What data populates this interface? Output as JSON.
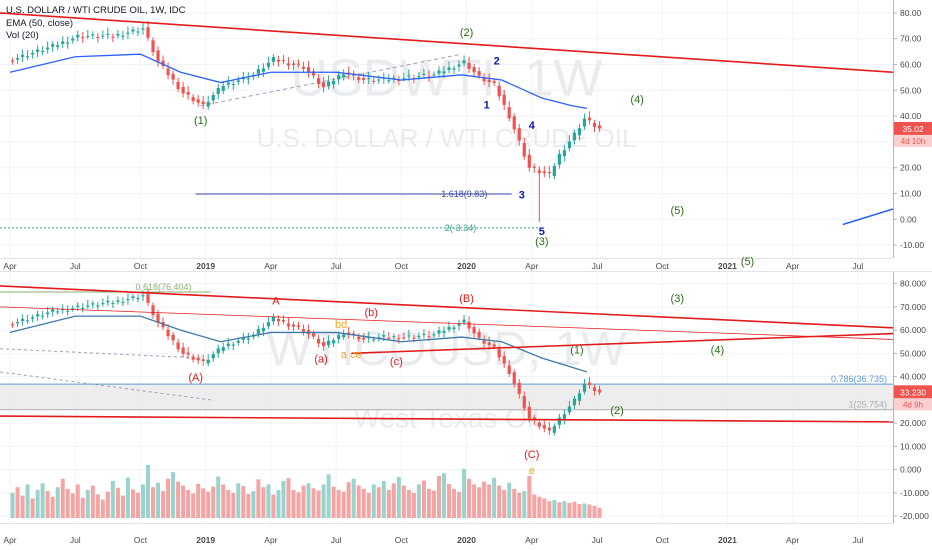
{
  "colors": {
    "up": "#26a69a",
    "down": "#ef5350",
    "ema": "#2962ff",
    "ema_lower": "#3d78a8",
    "trend": "#e31b1b",
    "wave_red": "#e31b1b",
    "wave_green": "#2b6e17",
    "wave_blue": "#0b19b8",
    "wave_orange": "#f5a623",
    "fib_blue": "#3b4aa5",
    "fib_teal": "#2fa38b",
    "grid": "#f0f3fa",
    "axis_text": "#4a4a4a",
    "band": "#d9d9d9",
    "watermark": "#e9ebef"
  },
  "header": {
    "title": "U.S. DOLLAR / WTI CRUDE OIL, 1W, IDC",
    "indicator_ema": "EMA (50, close)",
    "indicator_vol": "Vol (20)"
  },
  "chart_data": [
    {
      "type": "candlestick",
      "symbol": "USDWTI",
      "watermark": "USDWTI, 1W",
      "watermark_sub": "U.S. DOLLAR / WTI CRUDE OIL",
      "ylim": [
        -15,
        85
      ],
      "yticks": [
        "80.00",
        "70.00",
        "60.00",
        "50.00",
        "40.00",
        "30.00",
        "20.00",
        "10.00",
        "0.00",
        "-10.00"
      ],
      "yticks_values": [
        80,
        70,
        60,
        50,
        40,
        30,
        20,
        10,
        0,
        -10
      ],
      "x_axis": [
        "Apr",
        "Jul",
        "Oct",
        "2019",
        "Apr",
        "Jul",
        "Oct",
        "2020",
        "Apr",
        "Jul",
        "Oct",
        "2021",
        "Apr",
        "Jul"
      ],
      "x_axis_values": [
        0,
        13,
        26,
        39,
        52,
        65,
        78,
        91,
        104,
        117,
        130,
        143,
        156,
        169
      ],
      "x_range": [
        -2,
        176
      ],
      "anchors": [
        [
          0,
          62
        ],
        [
          8,
          67
        ],
        [
          13,
          71
        ],
        [
          20,
          71
        ],
        [
          26,
          74
        ],
        [
          29,
          61
        ],
        [
          34,
          49
        ],
        [
          38,
          44
        ],
        [
          42,
          52
        ],
        [
          48,
          56
        ],
        [
          52,
          62
        ],
        [
          58,
          59
        ],
        [
          62,
          51
        ],
        [
          66,
          57
        ],
        [
          70,
          54
        ],
        [
          74,
          54
        ],
        [
          78,
          55
        ],
        [
          84,
          56
        ],
        [
          90,
          61
        ],
        [
          93,
          55
        ],
        [
          96,
          52
        ],
        [
          99,
          40
        ],
        [
          103,
          20
        ],
        [
          107,
          17
        ],
        [
          109,
          25
        ],
        [
          112,
          33
        ],
        [
          114,
          39
        ],
        [
          117,
          35
        ]
      ],
      "ema": [
        [
          0,
          57
        ],
        [
          13,
          63
        ],
        [
          26,
          64
        ],
        [
          34,
          57
        ],
        [
          42,
          53
        ],
        [
          52,
          57
        ],
        [
          65,
          57
        ],
        [
          78,
          54
        ],
        [
          90,
          56
        ],
        [
          98,
          54
        ],
        [
          106,
          47
        ],
        [
          112,
          44
        ],
        [
          115,
          43
        ]
      ],
      "last_price": "35.02",
      "last_countdown": "4d 10h",
      "trendlines": [
        {
          "points": [
            [
              -2,
              80
            ],
            [
              176,
              57
            ]
          ]
        },
        {
          "points": [
            [
              166,
              -2
            ],
            [
              176,
              4
            ]
          ]
        }
      ],
      "fib_lines": [
        {
          "label": "1.618(9.83)",
          "value": 9.83,
          "x_from": 37,
          "x_to": 100
        },
        {
          "label": "2(-3.34)",
          "value": -3.34,
          "x_from": -2,
          "x_to": 106
        }
      ],
      "dashed_channel": [
        [
          38,
          44
        ],
        [
          90,
          64
        ]
      ],
      "wave_labels": [
        {
          "text": "(1)",
          "x": 38,
          "y": 37,
          "color": "green"
        },
        {
          "text": "(2)",
          "x": 91,
          "y": 71,
          "color": "green"
        },
        {
          "text": "2",
          "x": 97,
          "y": 60,
          "color": "blue"
        },
        {
          "text": "1",
          "x": 95,
          "y": 43,
          "color": "blue"
        },
        {
          "text": "4",
          "x": 104,
          "y": 35,
          "color": "blue"
        },
        {
          "text": "3",
          "x": 102,
          "y": 8,
          "color": "blue"
        },
        {
          "text": "5",
          "x": 106,
          "y": -6,
          "color": "blue"
        },
        {
          "text": "(3)",
          "x": 106,
          "y": -10,
          "color": "green"
        },
        {
          "text": "(4)",
          "x": 125,
          "y": 45,
          "color": "green"
        },
        {
          "text": "(5)",
          "x": 133,
          "y": 2,
          "color": "green"
        }
      ]
    },
    {
      "type": "candlestick",
      "symbol": "WTICOUSD",
      "watermark": "WTICOUSD, 1W",
      "watermark_sub": "West Texas Oil",
      "ylim": [
        -23,
        85
      ],
      "yticks": [
        "80.000",
        "70.000",
        "60.000",
        "50.000",
        "40.000",
        "30.000",
        "20.000",
        "10.000",
        "0.000",
        "-10.000",
        "-20.000"
      ],
      "yticks_values": [
        80,
        70,
        60,
        50,
        40,
        30,
        20,
        10,
        0,
        -10,
        -20
      ],
      "x_axis": [
        "Apr",
        "Jul",
        "Oct",
        "2019",
        "Apr",
        "Jul",
        "Oct",
        "2020",
        "Apr",
        "Jul",
        "Oct",
        "2021",
        "Apr",
        "Jul"
      ],
      "x_axis_values": [
        0,
        13,
        26,
        39,
        52,
        65,
        78,
        91,
        104,
        117,
        130,
        143,
        156,
        169
      ],
      "x_range": [
        -2,
        176
      ],
      "anchors": [
        [
          0,
          63
        ],
        [
          8,
          68
        ],
        [
          13,
          70
        ],
        [
          20,
          72
        ],
        [
          26,
          75
        ],
        [
          29,
          63
        ],
        [
          34,
          50
        ],
        [
          38,
          46
        ],
        [
          42,
          53
        ],
        [
          48,
          58
        ],
        [
          52,
          65
        ],
        [
          58,
          60
        ],
        [
          62,
          53
        ],
        [
          66,
          59
        ],
        [
          70,
          56
        ],
        [
          74,
          57
        ],
        [
          78,
          57
        ],
        [
          84,
          58
        ],
        [
          90,
          64
        ],
        [
          93,
          56
        ],
        [
          96,
          52
        ],
        [
          99,
          42
        ],
        [
          103,
          22
        ],
        [
          107,
          16
        ],
        [
          109,
          22
        ],
        [
          112,
          30
        ],
        [
          114,
          37
        ],
        [
          117,
          33
        ]
      ],
      "ema": [
        [
          0,
          59
        ],
        [
          13,
          66
        ],
        [
          26,
          66
        ],
        [
          34,
          60
        ],
        [
          42,
          55
        ],
        [
          52,
          59
        ],
        [
          65,
          59
        ],
        [
          78,
          55
        ],
        [
          90,
          57
        ],
        [
          98,
          55
        ],
        [
          106,
          48
        ],
        [
          112,
          44
        ],
        [
          115,
          42
        ]
      ],
      "volumes": [
        0.45,
        0.55,
        0.4,
        0.6,
        0.35,
        0.5,
        0.62,
        0.48,
        0.38,
        0.55,
        0.7,
        0.52,
        0.44,
        0.6,
        0.36,
        0.5,
        0.58,
        0.42,
        0.33,
        0.47,
        0.66,
        0.54,
        0.4,
        0.72,
        0.51,
        0.45,
        0.6,
        0.95,
        0.55,
        0.63,
        0.48,
        0.7,
        0.82,
        0.65,
        0.58,
        0.5,
        0.44,
        0.61,
        0.53,
        0.47,
        0.56,
        0.74,
        0.6,
        0.5,
        0.45,
        0.62,
        0.57,
        0.43,
        0.48,
        0.69,
        0.55,
        0.6,
        0.42,
        0.5,
        0.66,
        0.71,
        0.5,
        0.46,
        0.58,
        0.62,
        0.53,
        0.49,
        0.6,
        0.78,
        0.56,
        0.5,
        0.47,
        0.64,
        0.7,
        0.58,
        0.52,
        0.45,
        0.6,
        0.55,
        0.66,
        0.5,
        0.62,
        0.73,
        0.58,
        0.5,
        0.45,
        0.6,
        0.67,
        0.52,
        0.49,
        0.75,
        0.8,
        0.61,
        0.52,
        0.47,
        0.88,
        0.7,
        0.6,
        0.55,
        0.65,
        0.6,
        0.72,
        0.58,
        0.5,
        0.63,
        0.52,
        0.45,
        0.48,
        0.75,
        0.42,
        0.38,
        0.35,
        0.3,
        0.32,
        0.28,
        0.3,
        0.27,
        0.29,
        0.25,
        0.26,
        0.24,
        0.22,
        0.18
      ],
      "last_price": "33.230",
      "last_countdown": "4d 9h",
      "trendlines": [
        {
          "points": [
            [
              -2,
              79
            ],
            [
              176,
              61
            ]
          ]
        },
        {
          "points": [
            [
              -2,
              70
            ],
            [
              176,
              56
            ]
          ],
          "thin": true
        },
        {
          "points": [
            [
              -2,
              23
            ],
            [
              176,
              20.5
            ]
          ]
        },
        {
          "points": [
            [
              68,
              50
            ],
            [
              176,
              58.5
            ]
          ]
        }
      ],
      "fib_lines": [
        {
          "label": "0.618(76.404)",
          "value": 76.404,
          "x_from": -2,
          "x_to": 40
        },
        {
          "label": "0.786(36.735)",
          "value": 36.735,
          "x_from": -2,
          "x_to": 176
        },
        {
          "label": "1(25.754)",
          "value": 25.754,
          "x_from": -2,
          "x_to": 176
        }
      ],
      "wave_labels": [
        {
          "text": "A",
          "x": 53,
          "y": 71,
          "color": "red"
        },
        {
          "text": "(A)",
          "x": 37,
          "y": 38,
          "color": "red"
        },
        {
          "text": "(a)",
          "x": 62,
          "y": 46,
          "color": "red"
        },
        {
          "text": "(b)",
          "x": 72,
          "y": 66,
          "color": "red"
        },
        {
          "text": "bd",
          "x": 66,
          "y": 61,
          "color": "orange"
        },
        {
          "text": "a ce",
          "x": 68,
          "y": 48,
          "color": "orange"
        },
        {
          "text": "(c)",
          "x": 77,
          "y": 45,
          "color": "red"
        },
        {
          "text": "(B)",
          "x": 91,
          "y": 72,
          "color": "red"
        },
        {
          "text": "(C)",
          "x": 104,
          "y": 5,
          "color": "red"
        },
        {
          "text": "e",
          "x": 104,
          "y": -2,
          "color": "orange"
        },
        {
          "text": "(1)",
          "x": 113,
          "y": 50,
          "color": "green"
        },
        {
          "text": "(2)",
          "x": 121,
          "y": 24,
          "color": "green"
        },
        {
          "text": "(3)",
          "x": 133,
          "y": 72,
          "color": "green"
        },
        {
          "text": "(4)",
          "x": 141,
          "y": 50,
          "color": "green"
        },
        {
          "text": "(5)",
          "x": 147,
          "y": 88,
          "color": "green"
        }
      ]
    }
  ]
}
